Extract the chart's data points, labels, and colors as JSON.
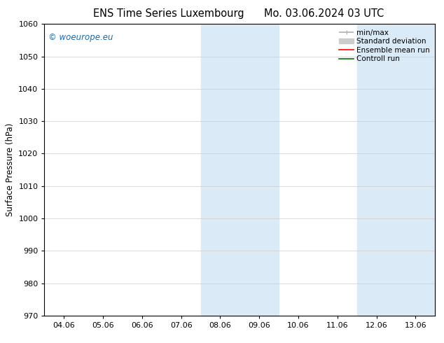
{
  "title_left": "ENS Time Series Luxembourg",
  "title_right": "Mo. 03.06.2024 03 UTC",
  "ylabel": "Surface Pressure (hPa)",
  "ylim": [
    970,
    1060
  ],
  "yticks": [
    970,
    980,
    990,
    1000,
    1010,
    1020,
    1030,
    1040,
    1050,
    1060
  ],
  "x_tick_labels": [
    "04.06",
    "05.06",
    "06.06",
    "07.06",
    "08.06",
    "09.06",
    "10.06",
    "11.06",
    "12.06",
    "13.06"
  ],
  "x_tick_positions": [
    0,
    1,
    2,
    3,
    4,
    5,
    6,
    7,
    8,
    9
  ],
  "shaded_regions": [
    {
      "xmin": 3.5,
      "xmax": 4.5,
      "color": "#daeaf6"
    },
    {
      "xmin": 4.5,
      "xmax": 5.5,
      "color": "#daeaf6"
    },
    {
      "xmin": 7.5,
      "xmax": 8.5,
      "color": "#daeaf6"
    },
    {
      "xmin": 8.5,
      "xmax": 9.5,
      "color": "#daeaf6"
    }
  ],
  "watermark": "© woeurope.eu",
  "watermark_color": "#1a6aad",
  "legend_items": [
    {
      "label": "min/max",
      "color": "#b0b0b0",
      "lw": 1.2,
      "style": "line_with_caps"
    },
    {
      "label": "Standard deviation",
      "color": "#cccccc",
      "lw": 6,
      "style": "solid"
    },
    {
      "label": "Ensemble mean run",
      "color": "#ff0000",
      "lw": 1.2,
      "style": "solid"
    },
    {
      "label": "Controll run",
      "color": "#007700",
      "lw": 1.2,
      "style": "solid"
    }
  ],
  "background_color": "#ffffff",
  "axes_background": "#ffffff",
  "grid_color": "#cccccc",
  "border_color": "#000000",
  "title_fontsize": 10.5,
  "tick_fontsize": 8,
  "ylabel_fontsize": 8.5,
  "watermark_fontsize": 8.5,
  "legend_fontsize": 7.5
}
